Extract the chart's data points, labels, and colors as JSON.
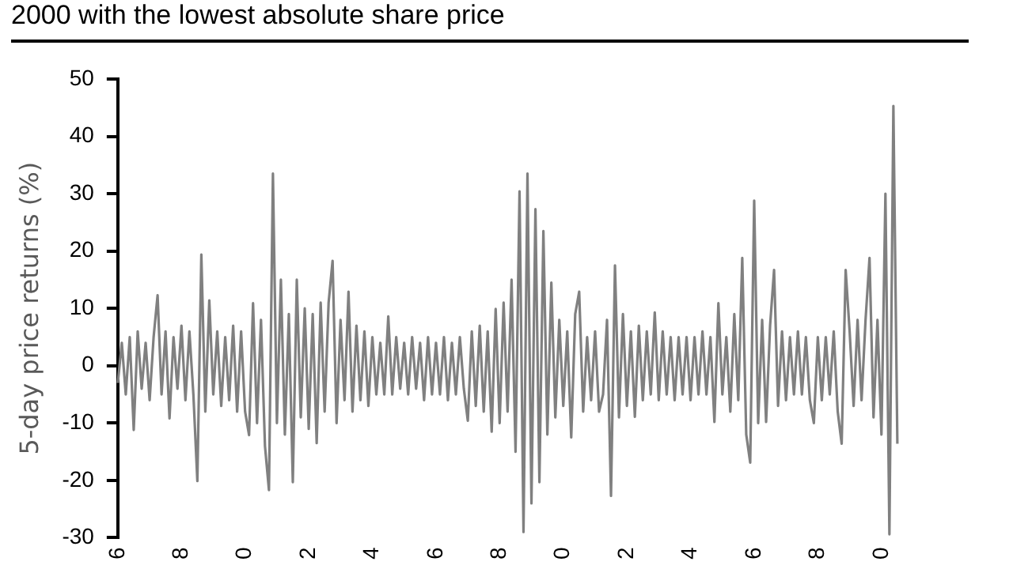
{
  "chart_data": {
    "type": "line",
    "title": "2000 with the lowest absolute share price",
    "ylabel": "5-day price returns (%)",
    "color": "#808080",
    "categories": [
      "6",
      null,
      null,
      null,
      null,
      null,
      null,
      null,
      null,
      null,
      null,
      null,
      null,
      null,
      null,
      null,
      "8",
      null,
      null,
      null,
      null,
      null,
      null,
      null,
      null,
      null,
      null,
      null,
      null,
      null,
      null,
      null,
      "0",
      null,
      null,
      null,
      null,
      null,
      null,
      null,
      null,
      null,
      null,
      null,
      null,
      null,
      null,
      null,
      "2",
      null,
      null,
      null,
      null,
      null,
      null,
      null,
      null,
      null,
      null,
      null,
      null,
      null,
      null,
      null,
      "4",
      null,
      null,
      null,
      null,
      null,
      null,
      null,
      null,
      null,
      null,
      null,
      null,
      null,
      null,
      null,
      "6",
      null,
      null,
      null,
      null,
      null,
      null,
      null,
      null,
      null,
      null,
      null,
      null,
      null,
      null,
      null,
      "8",
      null,
      null,
      null,
      null,
      null,
      null,
      null,
      null,
      null,
      null,
      null,
      null,
      null,
      null,
      null,
      "0",
      null,
      null,
      null,
      null,
      null,
      null,
      null,
      null,
      null,
      null,
      null,
      null,
      null,
      null,
      null,
      "2",
      null,
      null,
      null,
      null,
      null,
      null,
      null,
      null,
      null,
      null,
      null,
      null,
      null,
      null,
      null,
      "4",
      null,
      null,
      null,
      null,
      null,
      null,
      null,
      null,
      null,
      null,
      null,
      null,
      null,
      null,
      null,
      "6",
      null,
      null,
      null,
      null,
      null,
      null,
      null,
      null,
      null,
      null,
      null,
      null,
      null,
      null,
      null,
      "8",
      null,
      null,
      null,
      null,
      null,
      null,
      null,
      null,
      null,
      null,
      null,
      null,
      null,
      null,
      null,
      "0",
      null,
      null,
      null,
      null,
      null,
      null,
      null,
      null,
      null,
      null,
      null,
      null,
      null,
      null,
      null,
      null,
      null,
      null,
      null,
      null,
      null,
      null,
      null,
      null
    ],
    "values": [
      -3,
      4,
      -5,
      5,
      -11.2,
      6,
      -4,
      4,
      -6,
      5,
      12.3,
      -5,
      6,
      -9.2,
      5,
      -4,
      7,
      -6,
      6,
      -5,
      -20.1,
      19.4,
      -8,
      11.4,
      -5,
      6,
      -7,
      5,
      -6,
      7,
      -8,
      6,
      -8,
      -12.1,
      10.9,
      -10,
      8,
      -14,
      -21.7,
      33.5,
      -10,
      15,
      -12,
      9,
      -20.3,
      15,
      -9,
      10,
      -11,
      9,
      -13.5,
      11,
      -8,
      11,
      18.3,
      -10,
      8,
      -6,
      12.9,
      -8,
      7,
      -6,
      6,
      -7,
      5,
      -5,
      4,
      -5,
      8.6,
      -5,
      5,
      -4,
      4,
      -5,
      5,
      -4,
      4,
      -6,
      5,
      -5,
      4,
      -5,
      5,
      -6,
      4,
      -5,
      5,
      -4,
      -9.6,
      6,
      -7,
      7,
      -8,
      6,
      -11.5,
      9.9,
      -10,
      11,
      -8,
      15,
      -15,
      30.4,
      -29,
      33.5,
      -24,
      27.3,
      -20.3,
      23.5,
      -12,
      14.5,
      -9,
      8,
      -7,
      6,
      -12.5,
      9,
      12.9,
      -8,
      5,
      -6,
      6,
      -8,
      -5,
      8,
      -22.7,
      17.5,
      -9,
      9,
      -7,
      6,
      -8.9,
      7,
      -6,
      6,
      -5,
      9.3,
      -6,
      6,
      -5,
      5,
      -6,
      5,
      -5,
      5,
      -6,
      5,
      -5,
      6,
      -5,
      5,
      -9.8,
      10.9,
      -5,
      5,
      -8,
      9,
      -6,
      18.8,
      -12,
      -16.9,
      28.8,
      -10,
      8,
      -9.8,
      7,
      16.7,
      -7,
      6,
      -6,
      5,
      -5,
      6,
      -5,
      5,
      -6,
      -10,
      5,
      -6,
      5,
      -5,
      6,
      -8,
      -13.6,
      16.7,
      6,
      -7,
      8,
      -6,
      8,
      18.8,
      -9,
      8,
      -12,
      30,
      -29.4,
      45.3,
      -13.6,
      null,
      null,
      null,
      null,
      null,
      null,
      null,
      null,
      null,
      null,
      null,
      null,
      null,
      null,
      null,
      null,
      null,
      null,
      null,
      null
    ],
    "ylim": [
      -30,
      50
    ],
    "yticks": [
      -30,
      -20,
      -10,
      0,
      10,
      20,
      30,
      40,
      50
    ]
  }
}
